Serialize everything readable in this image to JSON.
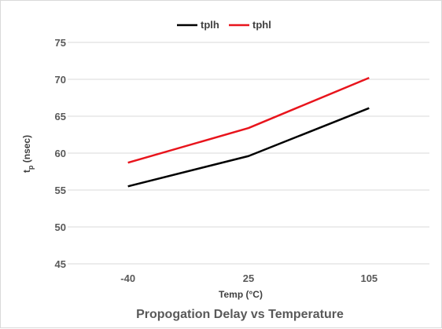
{
  "chart_data": {
    "type": "line",
    "title": "Propogation Delay vs Temperature",
    "xlabel": "Temp (°C)",
    "ylabel_main": "t",
    "ylabel_sub": "p",
    "ylabel_rest": " (nsec)",
    "categories": [
      "-40",
      "25",
      "105"
    ],
    "ylim": [
      45,
      75
    ],
    "yticks": [
      45,
      50,
      55,
      60,
      65,
      70,
      75
    ],
    "grid": true,
    "legend_position": "top",
    "series": [
      {
        "name": "tplh",
        "color": "#000000",
        "values": [
          55.5,
          59.6,
          66.1
        ]
      },
      {
        "name": "tphl",
        "color": "#e8141c",
        "values": [
          58.7,
          63.4,
          70.2
        ]
      }
    ]
  }
}
